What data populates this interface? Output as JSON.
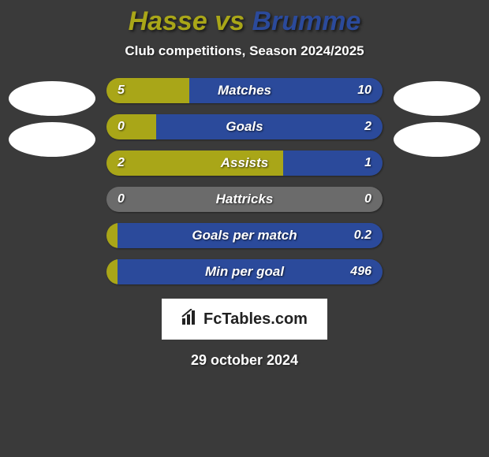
{
  "title": {
    "player1": "Hasse",
    "vs": " vs ",
    "player2": "Brumme",
    "color1": "#a9a618",
    "color2": "#2b4a9b"
  },
  "subtitle": "Club competitions, Season 2024/2025",
  "colors": {
    "left": "#a9a618",
    "right": "#2b4a9b",
    "neutral": "#6b6b6b",
    "background": "#3a3a3a"
  },
  "bars": [
    {
      "label": "Matches",
      "left": "5",
      "right": "10",
      "left_pct": 30,
      "right_pct": 70
    },
    {
      "label": "Goals",
      "left": "0",
      "right": "2",
      "left_pct": 18,
      "right_pct": 82
    },
    {
      "label": "Assists",
      "left": "2",
      "right": "1",
      "left_pct": 64,
      "right_pct": 36
    },
    {
      "label": "Hattricks",
      "left": "0",
      "right": "0",
      "left_pct": 50,
      "right_pct": 50,
      "neutral": true
    },
    {
      "label": "Goals per match",
      "left": "",
      "right": "0.2",
      "left_pct": 4,
      "right_pct": 96
    },
    {
      "label": "Min per goal",
      "left": "",
      "right": "496",
      "left_pct": 4,
      "right_pct": 96
    }
  ],
  "logo": {
    "icon": "📊",
    "text": "FcTables.com"
  },
  "date": "29 october 2024",
  "bar_style": {
    "height": 32,
    "radius": 16,
    "label_fontsize": 17,
    "value_fontsize": 16
  }
}
